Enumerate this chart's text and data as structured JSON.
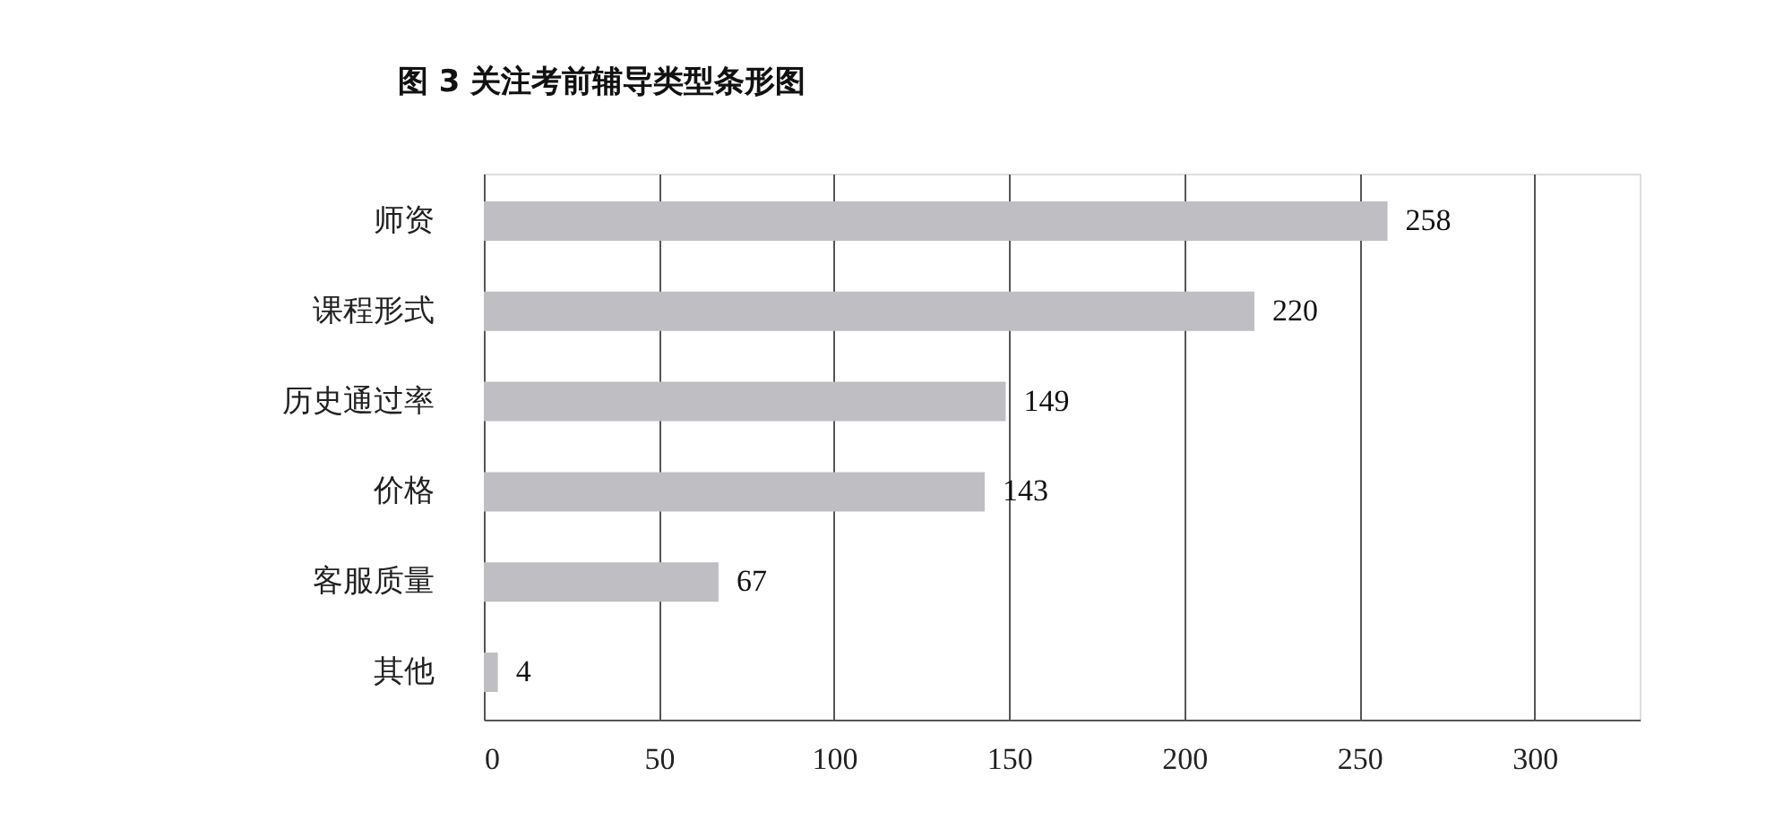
{
  "chart_data": {
    "type": "bar",
    "orientation": "horizontal",
    "title": "图 3 关注考前辅导类型条形图",
    "categories": [
      "师资",
      "课程形式",
      "历史通过率",
      "价格",
      "客服质量",
      "其他"
    ],
    "values": [
      258,
      220,
      149,
      143,
      67,
      4
    ],
    "color": "#bfbfc3",
    "xlim": [
      0,
      330
    ],
    "xticks": [
      0,
      50,
      100,
      150,
      200,
      250,
      300
    ],
    "grid": "x",
    "data_labels": true
  }
}
